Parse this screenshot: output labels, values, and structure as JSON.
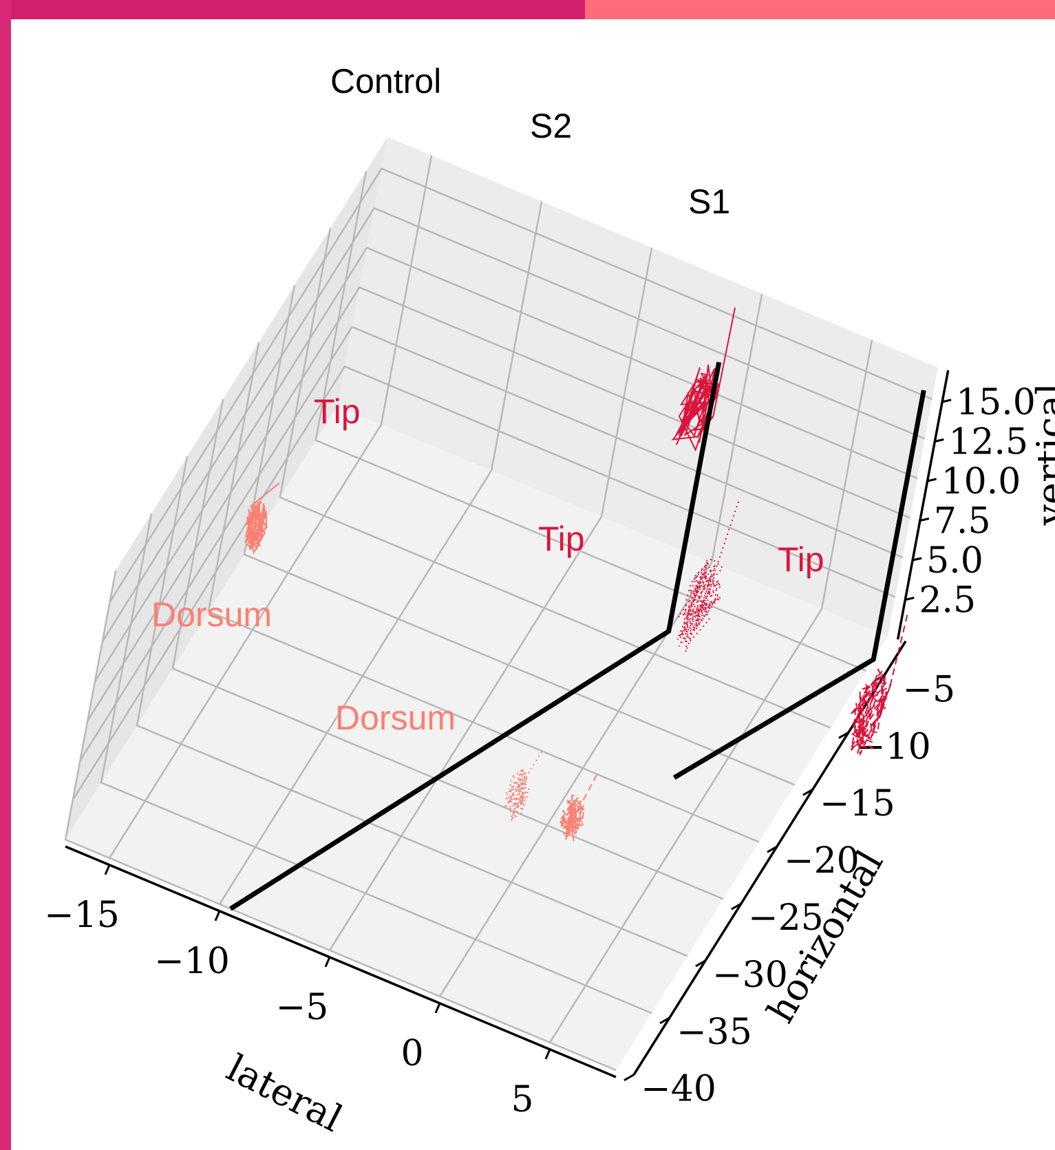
{
  "colors": {
    "frame_left": "#d92a78",
    "frame_top_left": "#d21f6e",
    "frame_top_right": "#ff6b7b",
    "panel_bg": "#ffffff",
    "pane_fill": "#f2f2f2",
    "grid": "#b8b8b8",
    "axis": "#000000",
    "tip": "#dc143c",
    "dorsum": "#fa8072",
    "reference_line": "#000000"
  },
  "chart_data": {
    "type": "line3d",
    "title": "",
    "axes": {
      "lateral": {
        "label": "lateral",
        "range": [
          -17,
          8
        ],
        "ticks": [
          -15,
          -10,
          -5,
          0,
          5
        ],
        "tick_labels": [
          "−15",
          "−10",
          "−5",
          "0",
          "5"
        ]
      },
      "horizontal": {
        "label": "horizontal",
        "range": [
          -40,
          -2
        ],
        "ticks": [
          -5,
          -10,
          -15,
          -20,
          -25,
          -30,
          -35,
          -40
        ],
        "tick_labels": [
          "−5",
          "−10",
          "−15",
          "−20",
          "−25",
          "−30",
          "−35",
          "−40"
        ]
      },
      "vertical": {
        "label": "vertical",
        "range": [
          0,
          17
        ],
        "ticks": [
          2.5,
          5.0,
          7.5,
          10.0,
          12.5,
          15.0
        ],
        "tick_labels": [
          "2.5",
          "5.0",
          "7.5",
          "10.0",
          "12.5",
          "15.0"
        ]
      }
    },
    "grid": true,
    "reference_lines": [
      {
        "label": "Control",
        "path": [
          {
            "lateral": -9.5,
            "horizontal": -40,
            "vertical": 0
          },
          {
            "lateral": 0,
            "horizontal": -8,
            "vertical": 0
          },
          {
            "lateral": 0,
            "horizontal": -8,
            "vertical": 17
          }
        ]
      },
      {
        "label": "S1",
        "path": [
          {
            "lateral": 3.5,
            "horizontal": -18,
            "vertical": 0
          },
          {
            "lateral": 8,
            "horizontal": -4,
            "vertical": 0
          },
          {
            "lateral": 8,
            "horizontal": -4,
            "vertical": 17
          }
        ]
      },
      {
        "label": "S2",
        "path": []
      }
    ],
    "series": [
      {
        "name": "Tip",
        "group": "Control",
        "style": "solid",
        "color": "#dc143c",
        "center": {
          "lateral": -2.5,
          "horizontal": 1,
          "vertical": 6
        }
      },
      {
        "name": "Dorsum",
        "group": "Control",
        "style": "solid",
        "color": "#fa8072",
        "center": {
          "lateral": -17,
          "horizontal": -14,
          "vertical": 1
        }
      },
      {
        "name": "Tip",
        "group": "S2",
        "style": "dotted",
        "color": "#dc143c",
        "center": {
          "lateral": 1.5,
          "horizontal": -10,
          "vertical": 4
        }
      },
      {
        "name": "Dorsum",
        "group": "S2",
        "style": "dotted",
        "color": "#fa8072",
        "center": {
          "lateral": -1.5,
          "horizontal": -25,
          "vertical": 1
        }
      },
      {
        "name": "Tip",
        "group": "S1",
        "style": "dashed",
        "color": "#dc143c",
        "center": {
          "lateral": 9.5,
          "horizontal": -10,
          "vertical": 1.5
        }
      },
      {
        "name": "Dorsum",
        "group": "S1",
        "style": "dashed",
        "color": "#fa8072",
        "center": {
          "lateral": 1,
          "horizontal": -25,
          "vertical": 1
        }
      }
    ],
    "annotations": [
      {
        "text": "Control",
        "color": "#000000"
      },
      {
        "text": "S2",
        "color": "#000000"
      },
      {
        "text": "S1",
        "color": "#000000"
      },
      {
        "text": "Tip",
        "color": "#dc143c"
      },
      {
        "text": "Tip",
        "color": "#dc143c"
      },
      {
        "text": "Tip",
        "color": "#dc143c"
      },
      {
        "text": "Dorsum",
        "color": "#fa8072"
      },
      {
        "text": "Dorsum",
        "color": "#fa8072"
      }
    ]
  }
}
